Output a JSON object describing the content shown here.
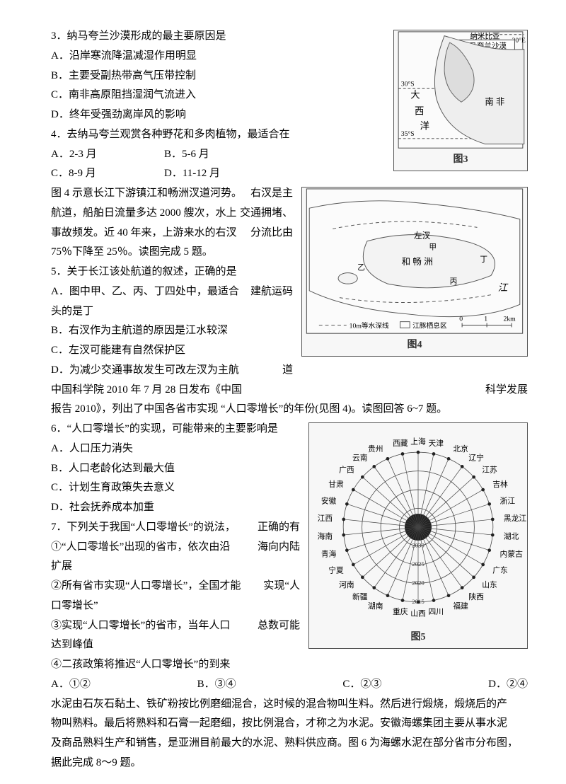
{
  "q3": {
    "stem": "3．纳马夸兰沙漠形成的最主要原因是",
    "a": "A．沿岸寒流降温减湿作用明显",
    "b": "B．主要受副热带高气压带控制",
    "c": "C．南非高原阻挡湿润气流进入",
    "d": "D．终年受强劲离岸风的影响"
  },
  "q4": {
    "stem": "4．去纳马夸兰观赏各种野花和多肉植物，最适合在",
    "a": "A．2-3 月",
    "b": "B．5-6 月",
    "c": "C．8-9 月",
    "d": "D．11-12 月"
  },
  "passage4": {
    "l1a": "图 4 示意长江下游镇江和畅洲汊道河势。",
    "l1b": "右汊是主",
    "l2a": "航道，船舶日流量多达 2000 艘次，水上",
    "l2b": "交通拥堵、",
    "l3a": "事故频发。近 40 年来，上游来水的右汊",
    "l3b": "分流比由",
    "l4": "75％下降至 25％。读图完成 5 题。"
  },
  "q5": {
    "stem": "5．关于长江该处航道的叙述，正确的是",
    "a1": "A．图中甲、乙、丙、丁四处中，最适合",
    "a2": "建航运码",
    "a3": "头的是丁",
    "b": "B．右汊作为主航道的原因是江水较深",
    "c": "C．左汊可能建有自然保护区",
    "d1": "D．为减少交通事故发生可改左汊为主航",
    "d2": "道"
  },
  "passage5": {
    "l1a": "中国科学院 2010 年 7 月 28 日发布《中国",
    "l1b": "科学发展",
    "l2": "报告 2010》，列出了中国各省市实现 “人口零增长”的年份(见图 4)。读图回答 6~7 题。"
  },
  "q6": {
    "stem": "6．“人口零增长”的实现，可能带来的主要影响是",
    "a": "A．人口压力消失",
    "b": "B．人口老龄化达到最大值",
    "c": "C．计划生育政策失去意义",
    "d": "D．社会抚养成本加重"
  },
  "q7": {
    "stem1": "7．下列关于我国“人口零增长”的说法，",
    "stem2": "正确的有",
    "s1a": "①“人口零增长”出现的省市，依次由沿",
    "s1b": "海向内陆",
    "s1c": "扩展",
    "s2a": "②所有省市实现“人口零增长”，全国才能",
    "s2b": "实现“人",
    "s2c": "口零增长”",
    "s3a": "③实现“人口零增长”的省市，当年人口",
    "s3b": "总数可能",
    "s3c": "达到峰值",
    "s4": "④二孩政策将推迟“人口零增长”的到来",
    "a": "A．①②",
    "b": "B．③④",
    "c": "C．②③",
    "d": "D．②④"
  },
  "passage6": {
    "l1": "水泥由石灰石黏土、铁矿粉按比例磨细混合，这时候的混合物叫生料。然后进行煅烧，煅烧后的产",
    "l2": "物叫熟料。最后将熟料和石膏一起磨细，按比例混合，才称之为水泥。安徽海螺集团主要从事水泥",
    "l3": "及商品熟料生产和销售，是亚洲目前最大的水泥、熟料供应商。图 6 为海螺水泥在部分省市分布图，",
    "l4": "据此完成 8～9 题。"
  },
  "fig3": {
    "caption": "图3",
    "labels": [
      "纳米比亚",
      "纳马夸兰沙漠",
      "大",
      "西",
      "洋",
      "南  非",
      "30°S",
      "35°S",
      "20°E"
    ]
  },
  "fig4": {
    "caption": "图4",
    "labels": [
      "左汊",
      "和 畅 洲",
      "甲",
      "乙",
      "丙",
      "丁",
      "江",
      "10m等水深线",
      "江豚栖息区",
      "0",
      "1",
      "2km"
    ]
  },
  "fig5": {
    "caption": "图5",
    "provinces": [
      "上海",
      "天津",
      "北京",
      "辽宁",
      "江苏",
      "吉林",
      "浙江",
      "黑龙江",
      "湖北",
      "内蒙古",
      "广东",
      "山东",
      "陕西",
      "福建",
      "四川",
      "山西",
      "重庆",
      "湖南",
      "新疆",
      "河南",
      "宁夏",
      "青海",
      "海南",
      "江西",
      "安徽",
      "甘肃",
      "广西",
      "云南",
      "贵州",
      "西藏"
    ],
    "rings": [
      "2015",
      "2020",
      "2025",
      "2030"
    ]
  },
  "colors": {
    "text": "#000000",
    "bg": "#ffffff",
    "fig_border": "#555555",
    "fig_bg": "#f7f7f7"
  }
}
